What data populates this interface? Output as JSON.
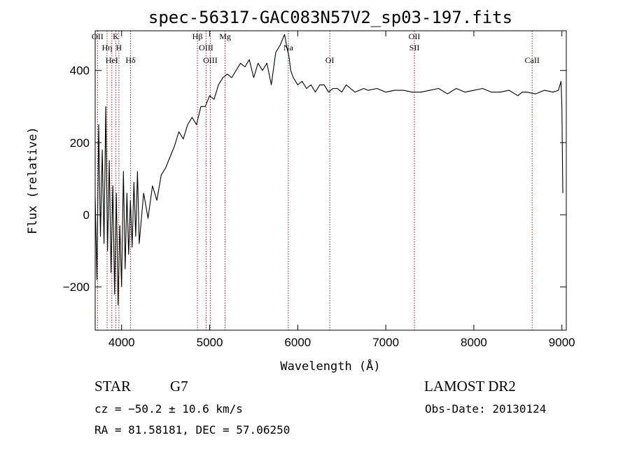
{
  "chart_data": {
    "type": "line",
    "title": "spec-56317-GAC083N57V2_sp03-197.fits",
    "xlabel": "Wavelength (Å)",
    "ylabel": "Flux (relative)",
    "xlim": [
      3700,
      9050
    ],
    "ylim": [
      -320,
      510
    ],
    "x_ticks": [
      4000,
      5000,
      6000,
      7000,
      8000,
      9000
    ],
    "x_tick_labels": [
      "4000",
      "5000",
      "6000",
      "7000",
      "8000",
      "9000"
    ],
    "y_ticks": [
      -200,
      0,
      200,
      400
    ],
    "y_tick_labels": [
      "−200",
      "0",
      "200",
      "400"
    ],
    "grid": false,
    "legend": "none",
    "line_color": "#000000",
    "marker_color": "#8b1a1a",
    "series": [
      {
        "x": [
          3700,
          3720,
          3740,
          3760,
          3780,
          3800,
          3820,
          3840,
          3860,
          3880,
          3900,
          3920,
          3940,
          3960,
          3980,
          4000,
          4020,
          4040,
          4060,
          4080,
          4100,
          4120,
          4140,
          4160,
          4180,
          4200,
          4250,
          4300,
          4350,
          4400,
          4450,
          4500,
          4550,
          4600,
          4650,
          4700,
          4750,
          4800,
          4850,
          4900,
          4950,
          5000,
          5050,
          5100,
          5150,
          5200,
          5250,
          5300,
          5350,
          5400,
          5450,
          5500,
          5550,
          5600,
          5650,
          5700,
          5750,
          5800,
          5850,
          5880,
          5900,
          5920,
          5950,
          6000,
          6050,
          6100,
          6150,
          6200,
          6250,
          6300,
          6350,
          6400,
          6450,
          6500,
          6550,
          6600,
          6650,
          6700,
          6750,
          6800,
          6900,
          7000,
          7100,
          7200,
          7300,
          7400,
          7500,
          7600,
          7700,
          7800,
          7900,
          8000,
          8100,
          8200,
          8300,
          8400,
          8500,
          8550,
          8600,
          8700,
          8800,
          8900,
          8960,
          8990,
          9000,
          9010
        ],
        "y": [
          50,
          -180,
          250,
          -60,
          180,
          -80,
          300,
          -100,
          150,
          -160,
          80,
          -220,
          60,
          -250,
          -30,
          -200,
          120,
          -150,
          60,
          -110,
          40,
          -90,
          90,
          -60,
          120,
          -80,
          60,
          -10,
          80,
          40,
          110,
          130,
          160,
          190,
          230,
          210,
          250,
          270,
          250,
          300,
          300,
          330,
          320,
          360,
          380,
          390,
          380,
          400,
          420,
          410,
          430,
          380,
          420,
          400,
          420,
          360,
          450,
          470,
          500,
          460,
          440,
          400,
          380,
          360,
          370,
          350,
          360,
          340,
          360,
          360,
          340,
          350,
          350,
          340,
          360,
          350,
          340,
          345,
          350,
          345,
          350,
          340,
          345,
          345,
          340,
          340,
          345,
          350,
          335,
          350,
          340,
          345,
          350,
          340,
          340,
          345,
          330,
          340,
          340,
          335,
          345,
          340,
          345,
          370,
          300,
          60
        ]
      }
    ],
    "spectral_lines": [
      {
        "label": "OII",
        "x": 3727
      },
      {
        "label": "Hη",
        "x": 3835
      },
      {
        "label": "HeI",
        "x": 3889
      },
      {
        "label": "K",
        "x": 3934
      },
      {
        "label": "H",
        "x": 3969
      },
      {
        "label": "Hδ",
        "x": 4102
      },
      {
        "label": "Hβ",
        "x": 4861
      },
      {
        "label": "OIII",
        "x": 4959
      },
      {
        "label": "OIII",
        "x": 5007
      },
      {
        "label": "Mg",
        "x": 5175
      },
      {
        "label": "Na",
        "x": 5893
      },
      {
        "label": "OI",
        "x": 6364
      },
      {
        "label": "OII",
        "x": 7325
      },
      {
        "label": "SII",
        "x": 7325
      },
      {
        "label": "CaII",
        "x": 8662
      }
    ]
  },
  "info": {
    "object_class": "STAR",
    "subclass": "G7",
    "survey": "LAMOST DR2",
    "cz": "cz = −50.2 ± 10.6 km/s",
    "obs_date": "Obs-Date: 20130124",
    "coords": "RA =  81.58181, DEC =  57.06250"
  }
}
